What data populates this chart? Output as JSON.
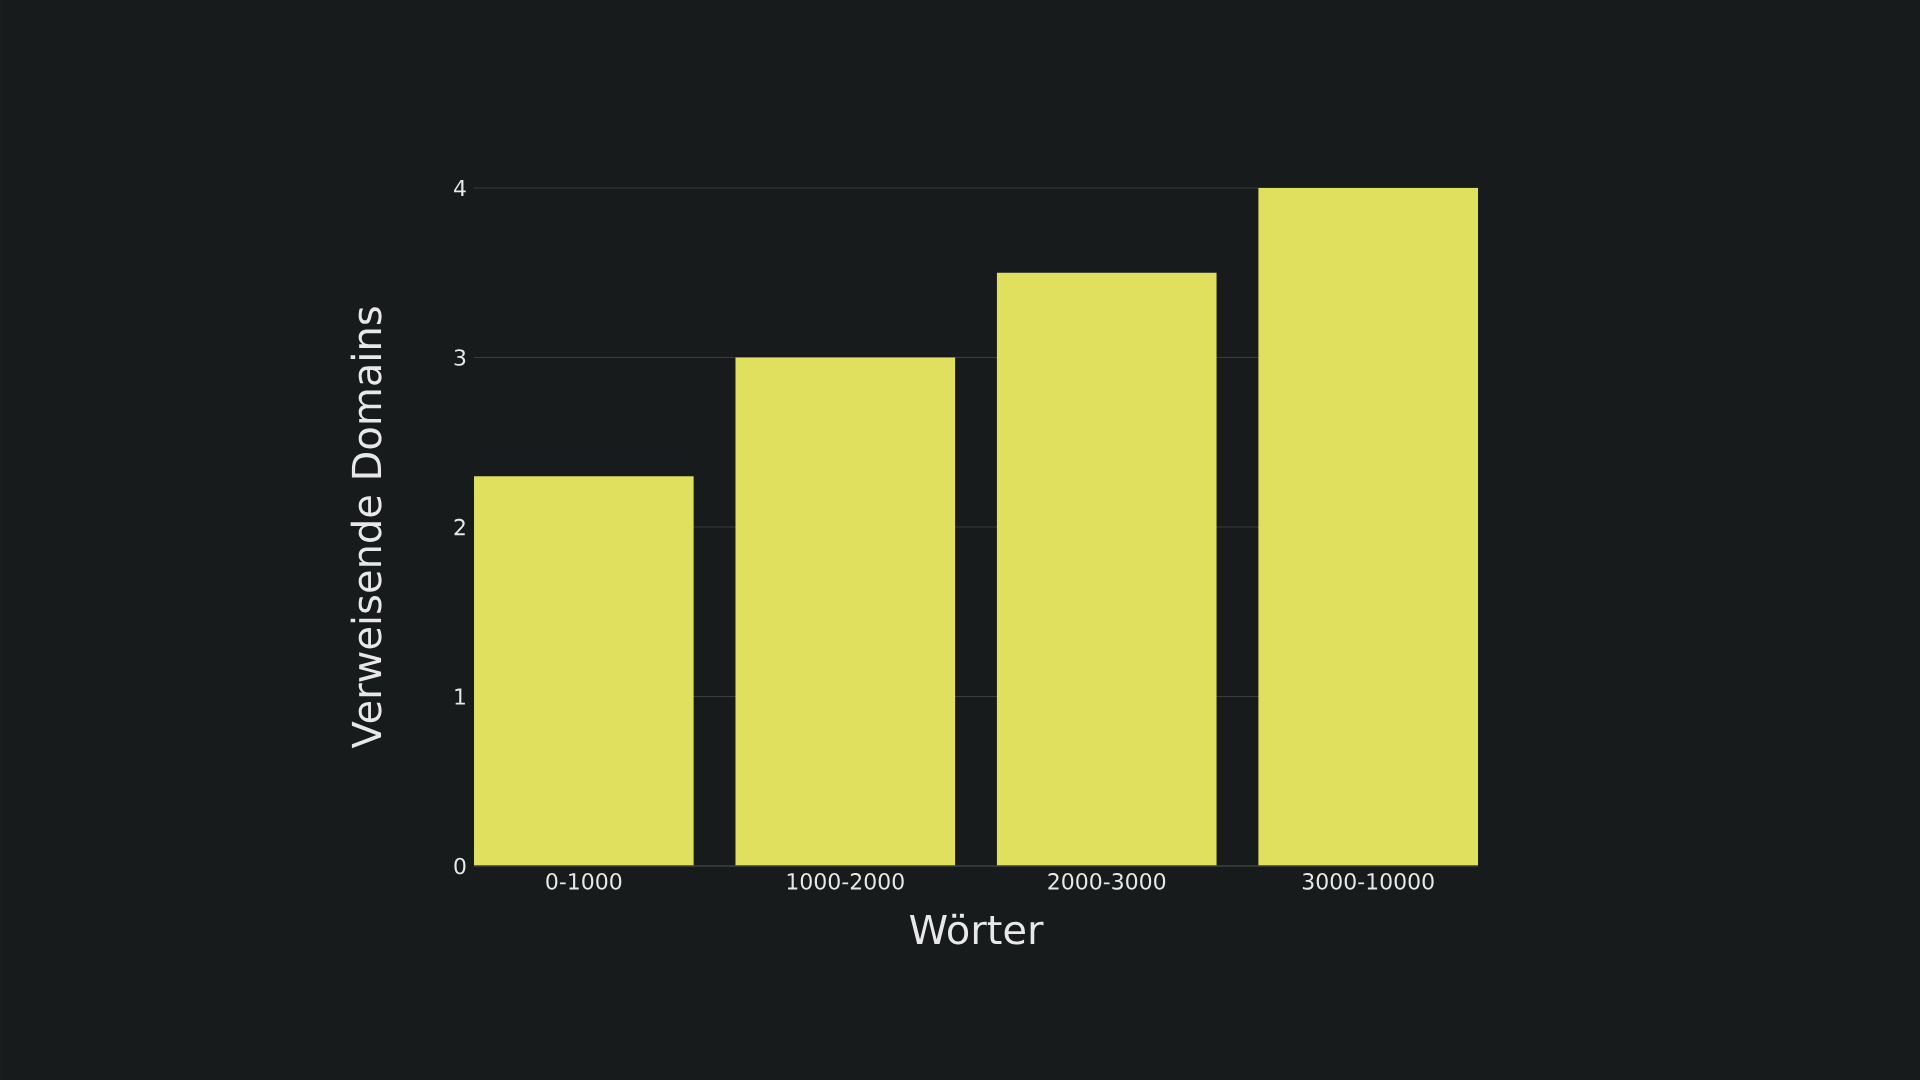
{
  "chart_data": {
    "type": "bar",
    "xlabel": "Wörter",
    "ylabel": "Verweisende Domains",
    "categories": [
      "0-1000",
      "1000-2000",
      "2000-3000",
      "3000-10000"
    ],
    "values": [
      2.3,
      3.0,
      3.5,
      4.0
    ],
    "color": "#e1df5e",
    "ylim": [
      0,
      4
    ],
    "yticks": [
      0,
      1,
      2,
      3,
      4
    ],
    "grid": "y"
  }
}
